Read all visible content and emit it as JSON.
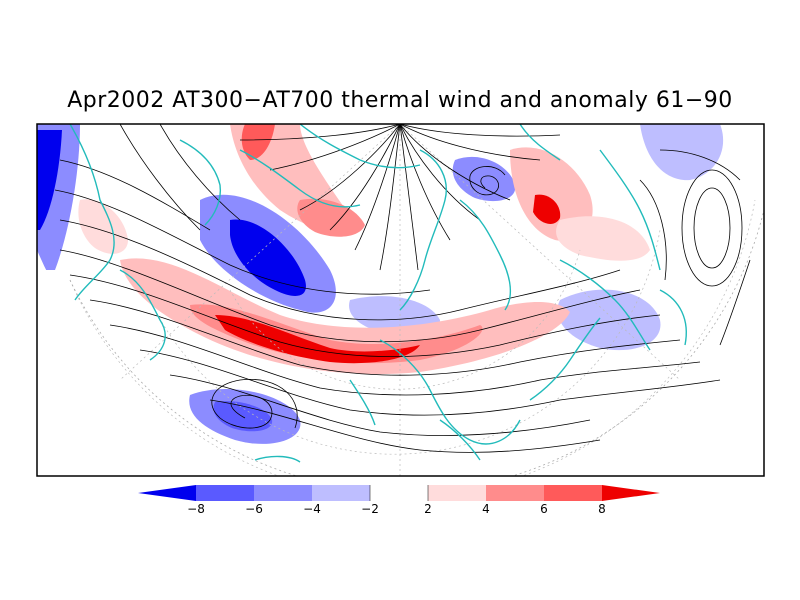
{
  "title": "Apr2002 AT300-AT700 thermal wind and anomaly 61-90",
  "colorbar": {
    "labels": [
      "-8",
      "-6",
      "-4",
      "-2",
      "2",
      "4",
      "6",
      "8"
    ],
    "colors": [
      "#0000ee",
      "#5a5aff",
      "#8c8cff",
      "#bebeff",
      "#dcdcff",
      "#ffffff",
      "#ffdcdc",
      "#ffbebe",
      "#ff8c8c",
      "#ff5a5a",
      "#ee0000"
    ]
  },
  "coastline_color": "#22bbbb",
  "streamline_color": "#000000"
}
